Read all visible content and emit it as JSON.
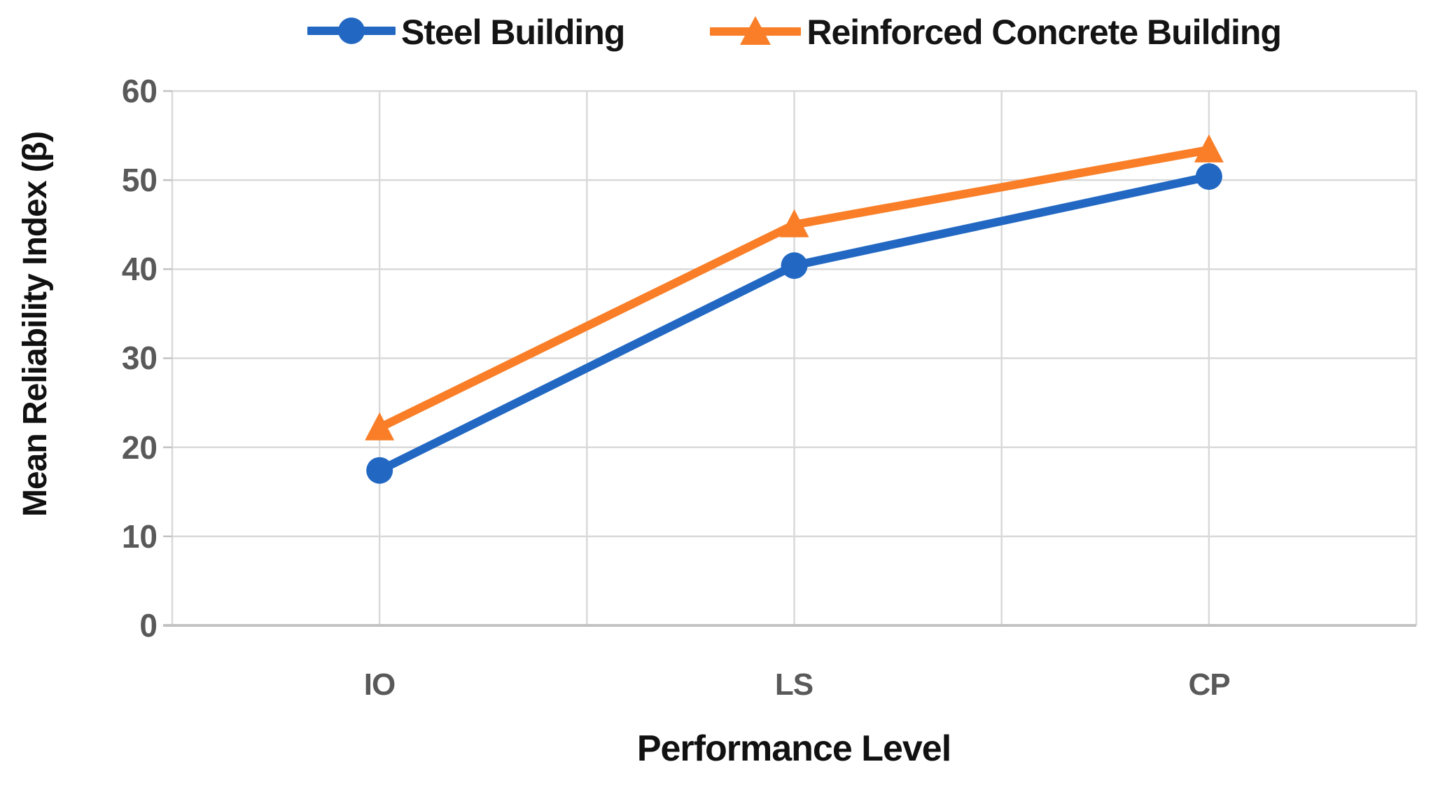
{
  "chart_data": {
    "type": "line",
    "title": "",
    "xlabel": "Performance Level",
    "ylabel": "Mean Reliability Index (β)",
    "categories": [
      "IO",
      "LS",
      "CP"
    ],
    "series": [
      {
        "name": "Steel Building",
        "marker": "circle",
        "color": "#2268C3",
        "values": [
          17.4,
          40.4,
          50.4
        ]
      },
      {
        "name": "Reinforced Concrete Building",
        "marker": "triangle",
        "color": "#F97E27",
        "values": [
          22.2,
          45.0,
          53.4
        ]
      }
    ],
    "ylim": [
      0,
      60
    ],
    "yticks": [
      0,
      10,
      20,
      30,
      40,
      50,
      60
    ],
    "ytick_labels": [
      "0",
      "10",
      "20",
      "30",
      "40",
      "50",
      "60"
    ],
    "grid": true,
    "legend_position": "top",
    "colors": {
      "gridline": "#D9D9D9",
      "axis_line": "#C2C2C2",
      "tick_label": "#595959",
      "title_text": "#111111",
      "background": "#FFFFFF"
    }
  }
}
